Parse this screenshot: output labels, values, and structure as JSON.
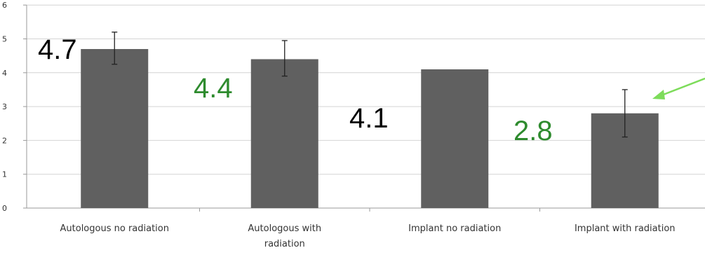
{
  "chart_data": {
    "type": "bar",
    "categories": [
      [
        "Autologous no radiation"
      ],
      [
        "Autologous with",
        "radiation"
      ],
      [
        "Implant no radiation"
      ],
      [
        "Implant with radiation"
      ]
    ],
    "values": [
      4.7,
      4.4,
      4.1,
      2.8
    ],
    "error_bars": [
      {
        "low": 4.25,
        "high": 5.2
      },
      {
        "low": 3.9,
        "high": 4.95
      },
      null,
      {
        "low": 2.1,
        "high": 3.5
      }
    ],
    "data_labels": [
      "4.7",
      "4.4",
      "4.1",
      "2.8"
    ],
    "data_label_colors": [
      "#000000",
      "#2e8b2e",
      "#000000",
      "#2e8b2e"
    ],
    "y_ticks": [
      "0",
      "1",
      "2",
      "3",
      "4",
      "5",
      "6"
    ],
    "ylim": [
      0,
      6
    ],
    "grid": true,
    "bar_color": "#606060",
    "annotation": {
      "type": "arrow",
      "color": "#7ddc5a",
      "points_to": "Implant with radiation"
    }
  }
}
